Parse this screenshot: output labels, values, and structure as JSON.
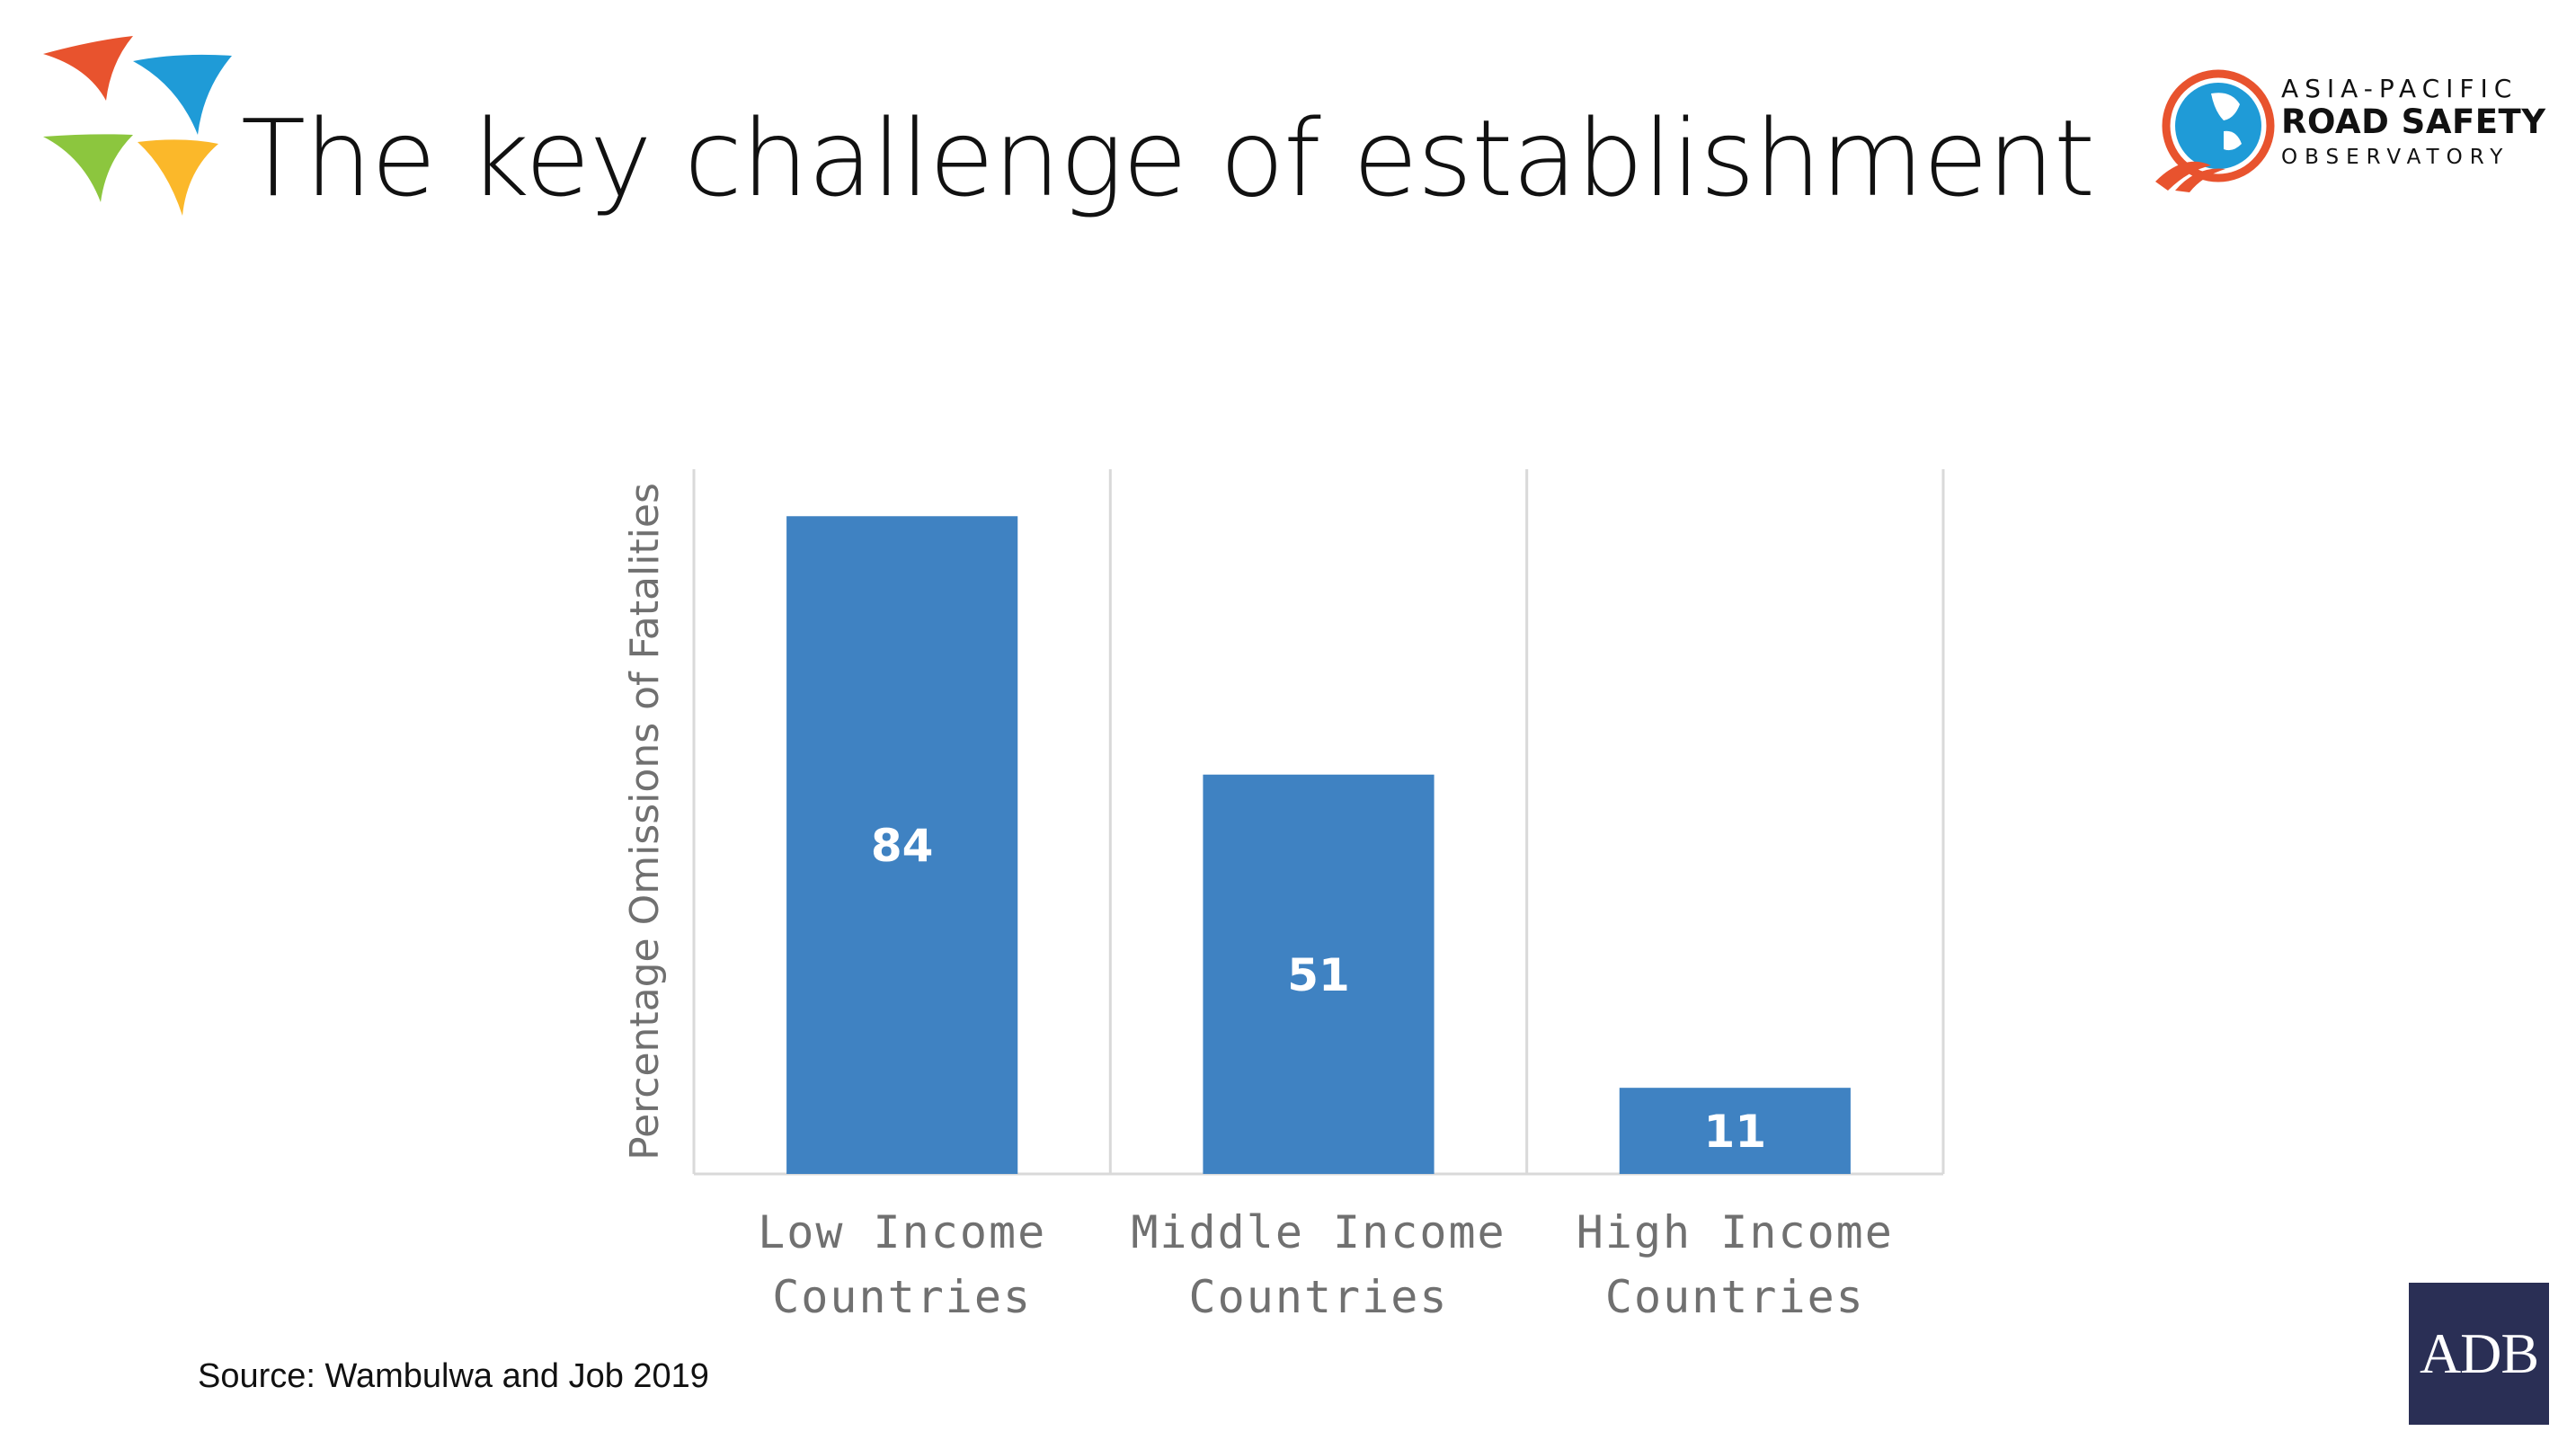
{
  "slide": {
    "title": "The key challenge of establishment",
    "source": "Source: Wambulwa and Job 2019"
  },
  "org_logo": {
    "line1": "ASIA-PACIFIC",
    "line2": "ROAD SAFETY",
    "line3": "OBSERVATORY"
  },
  "adb_logo": {
    "text": "ADB"
  },
  "colors": {
    "bar": "#3f82c2",
    "bar_label": "#ffffff",
    "grid": "#d9d9d9",
    "axis_text": "#707070",
    "logo_red": "#e8532e",
    "logo_blue": "#1f9bd7",
    "logo_green": "#8cc63e",
    "logo_yellow": "#fbb82a",
    "adb_navy": "#2a2f55"
  },
  "chart_data": {
    "type": "bar",
    "categories": [
      [
        "Low Income",
        "Countries"
      ],
      [
        "Middle Income",
        "Countries"
      ],
      [
        "High Income",
        "Countries"
      ]
    ],
    "values": [
      84,
      51,
      11
    ],
    "ylabel": "Percentage Omissions of Fatalities",
    "xlabel": "",
    "ylim": [
      0,
      90
    ],
    "grid": "vertical separators",
    "data_labels": true
  }
}
